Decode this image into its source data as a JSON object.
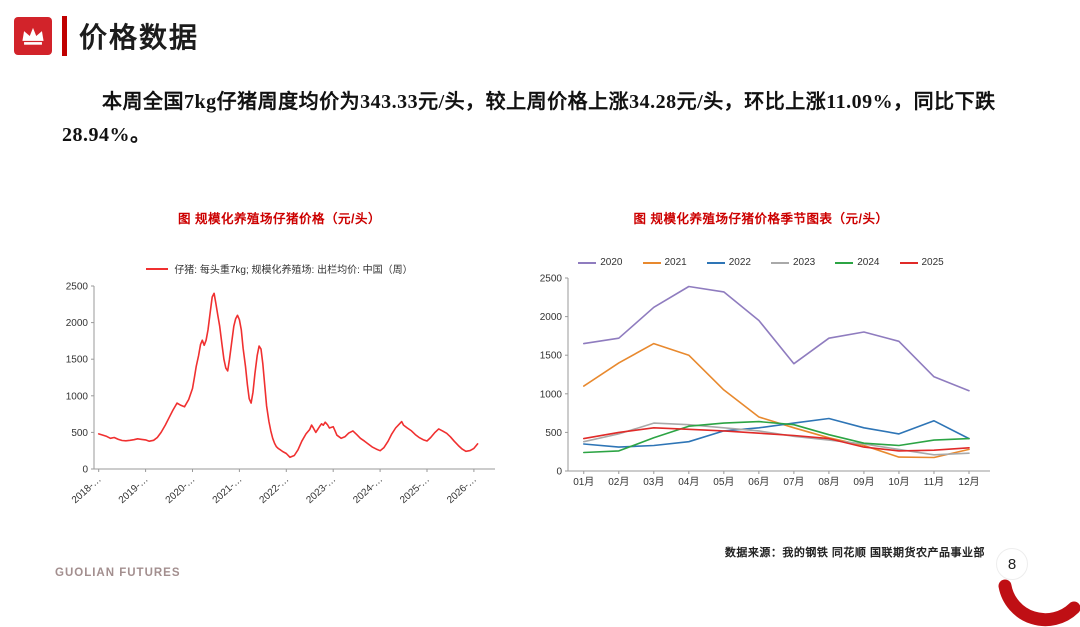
{
  "slide": {
    "title": "价格数据",
    "body": "本周全国7kg仔猪周度均价为343.33元/头，较上周价格上涨34.28元/头，环比上涨11.09%，同比下跌28.94%。",
    "source_note": "数据来源：我的钢铁 同花顺 国联期货农产品事业部",
    "brand": "GUOLIAN FUTURES",
    "page_number": "8"
  },
  "colors": {
    "accent_red": "#c00000",
    "header_icon_red": "#d2232a",
    "chart_title_red": "#cc0000",
    "axis_gray": "#9a9a9a"
  },
  "chart_data": [
    {
      "type": "line",
      "title": "图  规模化养殖场仔猪价格（元/头）",
      "legend_label": "仔猪: 每头重7kg; 规模化养殖场: 出栏均价: 中国（周）",
      "ylim": [
        0,
        2500
      ],
      "yticks": [
        0,
        500,
        1000,
        1500,
        2000,
        2500
      ],
      "xlim": [
        2017.9,
        2026.45
      ],
      "xticks": [
        {
          "v": 2018,
          "label": "2018-…"
        },
        {
          "v": 2019,
          "label": "2019-…"
        },
        {
          "v": 2020,
          "label": "2020-…"
        },
        {
          "v": 2021,
          "label": "2021-…"
        },
        {
          "v": 2022,
          "label": "2022-…"
        },
        {
          "v": 2023,
          "label": "2023-…"
        },
        {
          "v": 2024,
          "label": "2024-…"
        },
        {
          "v": 2025,
          "label": "2025-…"
        },
        {
          "v": 2026,
          "label": "2026-…"
        }
      ],
      "series": [
        {
          "name": "仔猪价格",
          "color": "#f03030",
          "points": [
            [
              2018.0,
              480
            ],
            [
              2018.08,
              465
            ],
            [
              2018.17,
              445
            ],
            [
              2018.25,
              420
            ],
            [
              2018.33,
              430
            ],
            [
              2018.42,
              405
            ],
            [
              2018.5,
              390
            ],
            [
              2018.58,
              385
            ],
            [
              2018.67,
              392
            ],
            [
              2018.75,
              400
            ],
            [
              2018.83,
              412
            ],
            [
              2018.92,
              405
            ],
            [
              2019.0,
              398
            ],
            [
              2019.08,
              380
            ],
            [
              2019.17,
              392
            ],
            [
              2019.25,
              430
            ],
            [
              2019.33,
              500
            ],
            [
              2019.42,
              600
            ],
            [
              2019.5,
              700
            ],
            [
              2019.58,
              800
            ],
            [
              2019.67,
              900
            ],
            [
              2019.75,
              870
            ],
            [
              2019.83,
              850
            ],
            [
              2019.92,
              950
            ],
            [
              2020.0,
              1100
            ],
            [
              2020.04,
              1250
            ],
            [
              2020.08,
              1400
            ],
            [
              2020.13,
              1550
            ],
            [
              2020.17,
              1700
            ],
            [
              2020.21,
              1760
            ],
            [
              2020.25,
              1690
            ],
            [
              2020.29,
              1760
            ],
            [
              2020.33,
              1900
            ],
            [
              2020.38,
              2150
            ],
            [
              2020.42,
              2350
            ],
            [
              2020.46,
              2400
            ],
            [
              2020.5,
              2260
            ],
            [
              2020.54,
              2100
            ],
            [
              2020.58,
              1950
            ],
            [
              2020.63,
              1700
            ],
            [
              2020.67,
              1500
            ],
            [
              2020.71,
              1380
            ],
            [
              2020.75,
              1340
            ],
            [
              2020.79,
              1500
            ],
            [
              2020.83,
              1700
            ],
            [
              2020.88,
              1950
            ],
            [
              2020.92,
              2050
            ],
            [
              2020.96,
              2100
            ],
            [
              2021.0,
              2040
            ],
            [
              2021.04,
              1900
            ],
            [
              2021.08,
              1650
            ],
            [
              2021.13,
              1400
            ],
            [
              2021.17,
              1150
            ],
            [
              2021.21,
              960
            ],
            [
              2021.25,
              900
            ],
            [
              2021.29,
              1050
            ],
            [
              2021.33,
              1300
            ],
            [
              2021.38,
              1550
            ],
            [
              2021.42,
              1680
            ],
            [
              2021.46,
              1640
            ],
            [
              2021.5,
              1440
            ],
            [
              2021.54,
              1150
            ],
            [
              2021.58,
              860
            ],
            [
              2021.63,
              650
            ],
            [
              2021.67,
              520
            ],
            [
              2021.71,
              420
            ],
            [
              2021.75,
              350
            ],
            [
              2021.79,
              305
            ],
            [
              2021.83,
              280
            ],
            [
              2021.88,
              258
            ],
            [
              2021.92,
              240
            ],
            [
              2022.0,
              212
            ],
            [
              2022.08,
              160
            ],
            [
              2022.17,
              185
            ],
            [
              2022.25,
              262
            ],
            [
              2022.33,
              380
            ],
            [
              2022.42,
              480
            ],
            [
              2022.5,
              540
            ],
            [
              2022.54,
              600
            ],
            [
              2022.58,
              558
            ],
            [
              2022.63,
              500
            ],
            [
              2022.67,
              540
            ],
            [
              2022.71,
              580
            ],
            [
              2022.75,
              618
            ],
            [
              2022.79,
              598
            ],
            [
              2022.83,
              640
            ],
            [
              2022.88,
              602
            ],
            [
              2022.92,
              560
            ],
            [
              2023.0,
              578
            ],
            [
              2023.04,
              520
            ],
            [
              2023.08,
              462
            ],
            [
              2023.17,
              420
            ],
            [
              2023.25,
              440
            ],
            [
              2023.33,
              490
            ],
            [
              2023.42,
              520
            ],
            [
              2023.5,
              472
            ],
            [
              2023.58,
              420
            ],
            [
              2023.67,
              380
            ],
            [
              2023.75,
              340
            ],
            [
              2023.83,
              302
            ],
            [
              2023.92,
              272
            ],
            [
              2024.0,
              250
            ],
            [
              2024.08,
              290
            ],
            [
              2024.17,
              380
            ],
            [
              2024.25,
              480
            ],
            [
              2024.33,
              560
            ],
            [
              2024.42,
              620
            ],
            [
              2024.46,
              648
            ],
            [
              2024.5,
              600
            ],
            [
              2024.58,
              560
            ],
            [
              2024.67,
              520
            ],
            [
              2024.75,
              470
            ],
            [
              2024.83,
              432
            ],
            [
              2024.92,
              400
            ],
            [
              2025.0,
              382
            ],
            [
              2025.08,
              430
            ],
            [
              2025.17,
              500
            ],
            [
              2025.25,
              548
            ],
            [
              2025.33,
              520
            ],
            [
              2025.42,
              488
            ],
            [
              2025.5,
              440
            ],
            [
              2025.58,
              380
            ],
            [
              2025.67,
              320
            ],
            [
              2025.75,
              272
            ],
            [
              2025.83,
              242
            ],
            [
              2025.92,
              252
            ],
            [
              2026.0,
              282
            ],
            [
              2026.08,
              343
            ]
          ]
        }
      ]
    },
    {
      "type": "line",
      "title": "图 规模化养殖场仔猪价格季节图表（元/头）",
      "categories": [
        "01月",
        "02月",
        "03月",
        "04月",
        "05月",
        "06月",
        "07月",
        "08月",
        "09月",
        "10月",
        "11月",
        "12月"
      ],
      "ylim": [
        0,
        2500
      ],
      "yticks": [
        0,
        500,
        1000,
        1500,
        2000,
        2500
      ],
      "series": [
        {
          "name": "2020",
          "color": "#8f7cbf",
          "values": [
            1650,
            1720,
            2120,
            2390,
            2320,
            1950,
            1390,
            1720,
            1800,
            1680,
            1220,
            1040
          ]
        },
        {
          "name": "2021",
          "color": "#e8892e",
          "values": [
            1100,
            1400,
            1650,
            1500,
            1050,
            700,
            560,
            430,
            330,
            180,
            175,
            280
          ]
        },
        {
          "name": "2022",
          "color": "#2e75b6",
          "values": [
            350,
            310,
            330,
            380,
            520,
            560,
            620,
            680,
            560,
            480,
            650,
            420
          ]
        },
        {
          "name": "2023",
          "color": "#a9a9a9",
          "values": [
            380,
            480,
            620,
            600,
            560,
            520,
            450,
            400,
            350,
            280,
            210,
            230
          ]
        },
        {
          "name": "2024",
          "color": "#2ca444",
          "values": [
            240,
            260,
            430,
            580,
            620,
            640,
            600,
            470,
            360,
            330,
            400,
            420
          ]
        },
        {
          "name": "2025",
          "color": "#e02a28",
          "values": [
            420,
            500,
            560,
            540,
            520,
            490,
            460,
            420,
            310,
            260,
            270,
            300
          ]
        }
      ]
    }
  ]
}
